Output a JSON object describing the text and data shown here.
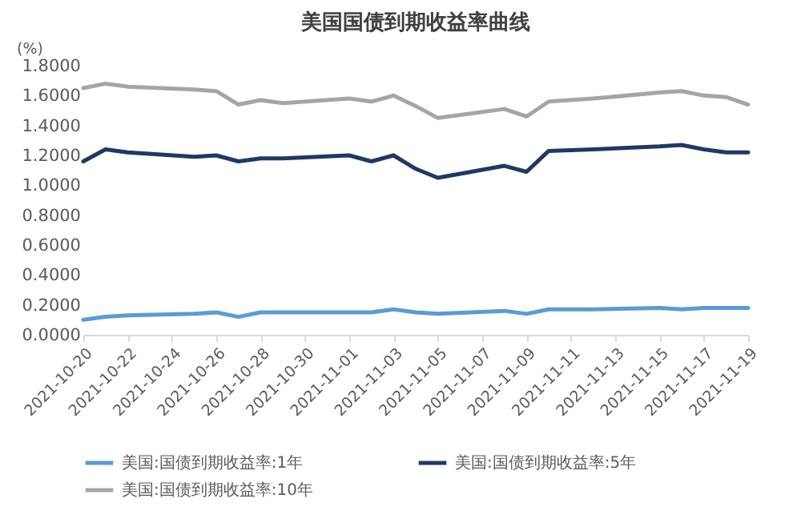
{
  "chart_data": {
    "type": "line",
    "title": "美国国债到期收益率曲线",
    "ylabel": "(%)",
    "x": [
      "2021-10-20",
      "2021-10-21",
      "2021-10-22",
      "2021-10-25",
      "2021-10-26",
      "2021-10-27",
      "2021-10-28",
      "2021-10-29",
      "2021-11-01",
      "2021-11-02",
      "2021-11-03",
      "2021-11-04",
      "2021-11-05",
      "2021-11-08",
      "2021-11-09",
      "2021-11-10",
      "2021-11-12",
      "2021-11-15",
      "2021-11-16",
      "2021-11-17",
      "2021-11-18",
      "2021-11-19"
    ],
    "series": [
      {
        "name": "美国:国债到期收益率:1年",
        "color": "#5b9bd5",
        "values": [
          0.1,
          0.12,
          0.13,
          0.14,
          0.15,
          0.12,
          0.15,
          0.15,
          0.15,
          0.15,
          0.17,
          0.15,
          0.14,
          0.16,
          0.14,
          0.17,
          0.17,
          0.18,
          0.17,
          0.18,
          0.18,
          0.18
        ]
      },
      {
        "name": "美国:国债到期收益率:5年",
        "color": "#203864",
        "values": [
          1.16,
          1.24,
          1.22,
          1.19,
          1.2,
          1.16,
          1.18,
          1.18,
          1.2,
          1.16,
          1.2,
          1.11,
          1.05,
          1.13,
          1.09,
          1.23,
          1.24,
          1.26,
          1.27,
          1.24,
          1.22,
          1.22
        ]
      },
      {
        "name": "美国:国债到期收益率:10年",
        "color": "#a5a5a5",
        "values": [
          1.65,
          1.68,
          1.66,
          1.64,
          1.63,
          1.54,
          1.57,
          1.55,
          1.58,
          1.56,
          1.6,
          1.53,
          1.45,
          1.51,
          1.46,
          1.56,
          1.58,
          1.62,
          1.63,
          1.6,
          1.59,
          1.54
        ]
      }
    ],
    "xlim": [
      "2021-10-20",
      "2021-11-19"
    ],
    "xticks": [
      "2021-10-20",
      "2021-10-22",
      "2021-10-24",
      "2021-10-26",
      "2021-10-28",
      "2021-10-30",
      "2021-11-01",
      "2021-11-03",
      "2021-11-05",
      "2021-11-07",
      "2021-11-09",
      "2021-11-11",
      "2021-11-13",
      "2021-11-15",
      "2021-11-17",
      "2021-11-19"
    ],
    "ylim": [
      0,
      1.8
    ],
    "yticks": [
      {
        "value": 0,
        "label": "0.0000"
      },
      {
        "value": 0.2,
        "label": "0.2000"
      },
      {
        "value": 0.4,
        "label": "0.4000"
      },
      {
        "value": 0.6,
        "label": "0.6000"
      },
      {
        "value": 0.8,
        "label": "0.8000"
      },
      {
        "value": 1.0,
        "label": "1.0000"
      },
      {
        "value": 1.2,
        "label": "1.2000"
      },
      {
        "value": 1.4,
        "label": "1.4000"
      },
      {
        "value": 1.6,
        "label": "1.6000"
      },
      {
        "value": 1.8,
        "label": "1.8000"
      }
    ],
    "grid": false,
    "legend": "bottom",
    "marker": "none",
    "line_style": "solid"
  }
}
